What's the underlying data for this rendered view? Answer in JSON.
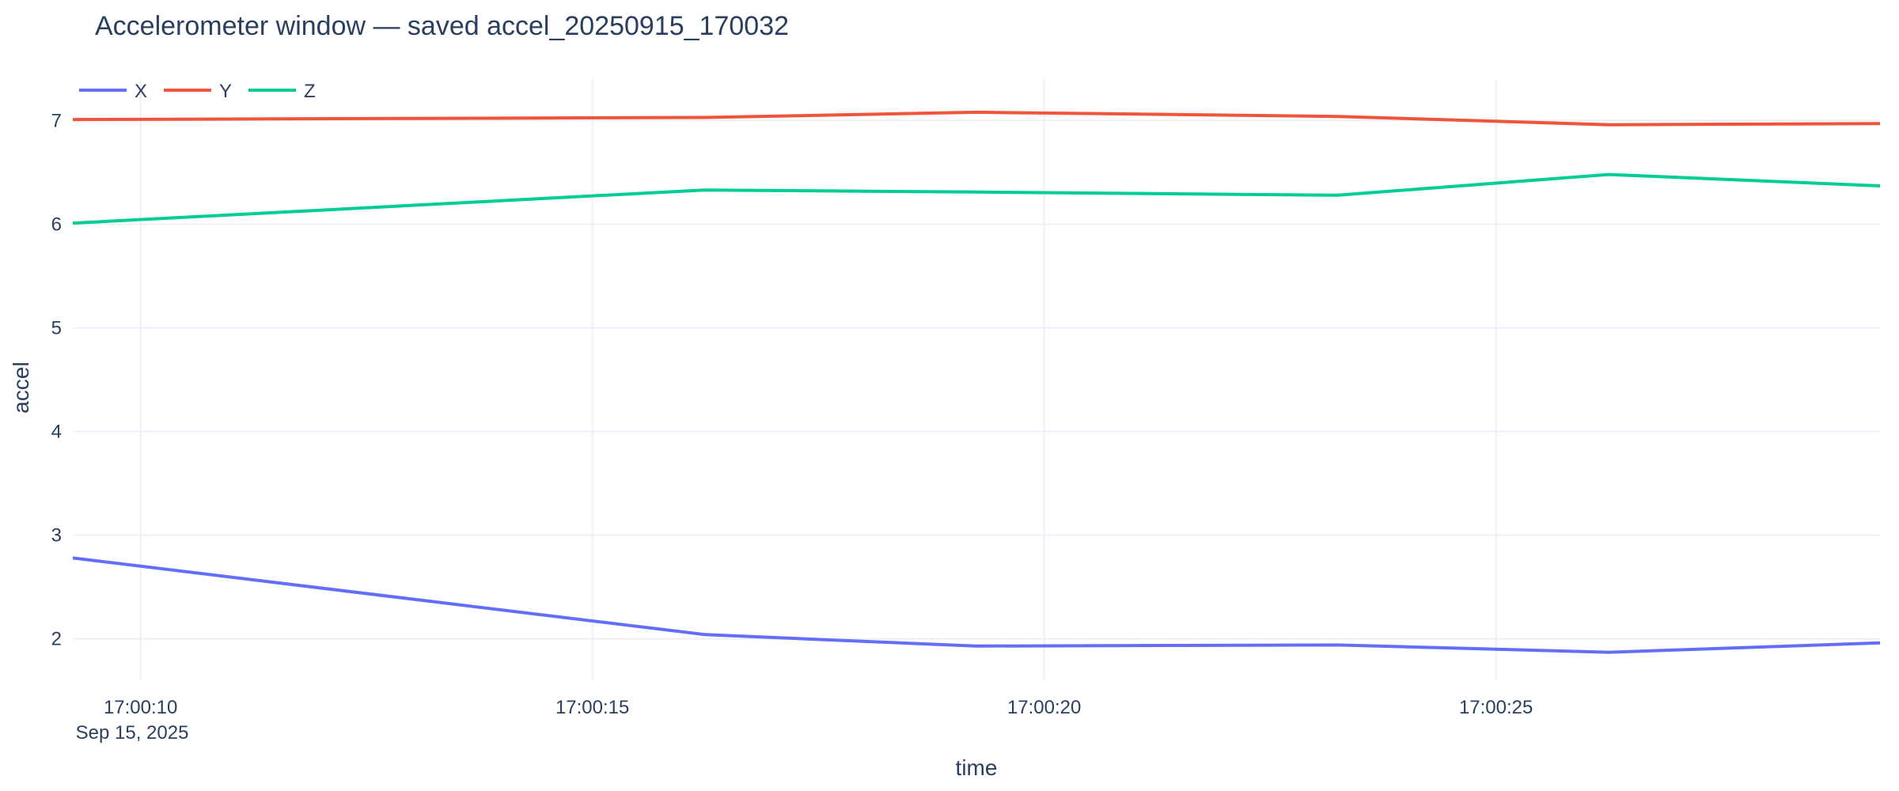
{
  "chart_data": {
    "type": "line",
    "title": "Accelerometer window — saved accel_20250915_170032",
    "xlabel": "time",
    "ylabel": "accel",
    "x_axis_type": "date",
    "date": "2025-09-15",
    "xlim": [
      "17:00:09.25",
      "17:00:29.25"
    ],
    "ylim": [
      1.6,
      7.4
    ],
    "x_ticks": [
      "17:00:10",
      "17:00:15",
      "17:00:20",
      "17:00:25"
    ],
    "x_tick_sublabel": "Sep 15, 2025",
    "y_ticks": [
      2,
      3,
      4,
      5,
      6,
      7
    ],
    "grid": true,
    "legend_position": "top-left",
    "legend_orientation": "horizontal",
    "x": [
      "17:00:09.25",
      "17:00:16.25",
      "17:00:19.25",
      "17:00:23.25",
      "17:00:26.25",
      "17:00:29.25"
    ],
    "series": [
      {
        "name": "X",
        "color": "#636efa",
        "values": [
          2.78,
          2.04,
          1.93,
          1.94,
          1.87,
          1.96
        ]
      },
      {
        "name": "Y",
        "color": "#ef553b",
        "values": [
          7.01,
          7.03,
          7.08,
          7.04,
          6.96,
          6.97
        ]
      },
      {
        "name": "Z",
        "color": "#00cc96",
        "values": [
          6.01,
          6.33,
          6.31,
          6.28,
          6.48,
          6.37
        ]
      }
    ]
  }
}
